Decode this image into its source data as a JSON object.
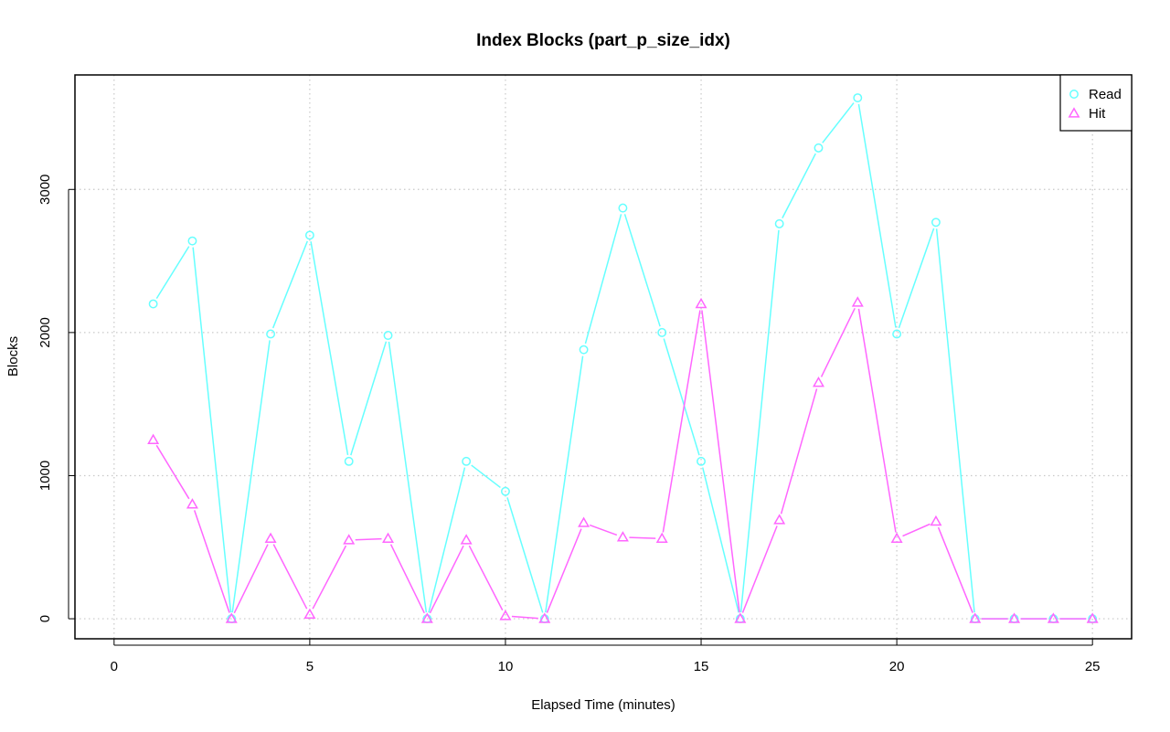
{
  "chart_data": {
    "type": "line",
    "title": "Index Blocks (part_p_size_idx)",
    "xlabel": "Elapsed Time (minutes)",
    "ylabel": "Blocks",
    "xlim": [
      -1,
      26
    ],
    "ylim": [
      -140,
      3800
    ],
    "x_ticks": [
      0,
      5,
      10,
      15,
      20,
      25
    ],
    "y_ticks": [
      0,
      1000,
      2000,
      3000
    ],
    "grid": true,
    "legend_position": "top-right",
    "x": [
      1,
      2,
      3,
      4,
      5,
      6,
      7,
      8,
      9,
      10,
      11,
      12,
      13,
      14,
      15,
      16,
      17,
      18,
      19,
      20,
      21,
      22,
      23,
      24,
      25
    ],
    "series": [
      {
        "name": "Read",
        "color": "#66ffff",
        "marker": "circle",
        "values": [
          2200,
          2640,
          0,
          1990,
          2680,
          1100,
          1980,
          0,
          1100,
          890,
          0,
          1880,
          2870,
          2000,
          1100,
          0,
          2760,
          3290,
          3640,
          1990,
          2770,
          0,
          0,
          0,
          0
        ]
      },
      {
        "name": "Hit",
        "color": "#ff66ff",
        "marker": "triangle",
        "values": [
          1250,
          800,
          0,
          560,
          30,
          550,
          560,
          0,
          550,
          20,
          0,
          670,
          570,
          560,
          2200,
          0,
          690,
          1650,
          2210,
          560,
          680,
          0,
          0,
          0,
          0
        ]
      }
    ]
  }
}
